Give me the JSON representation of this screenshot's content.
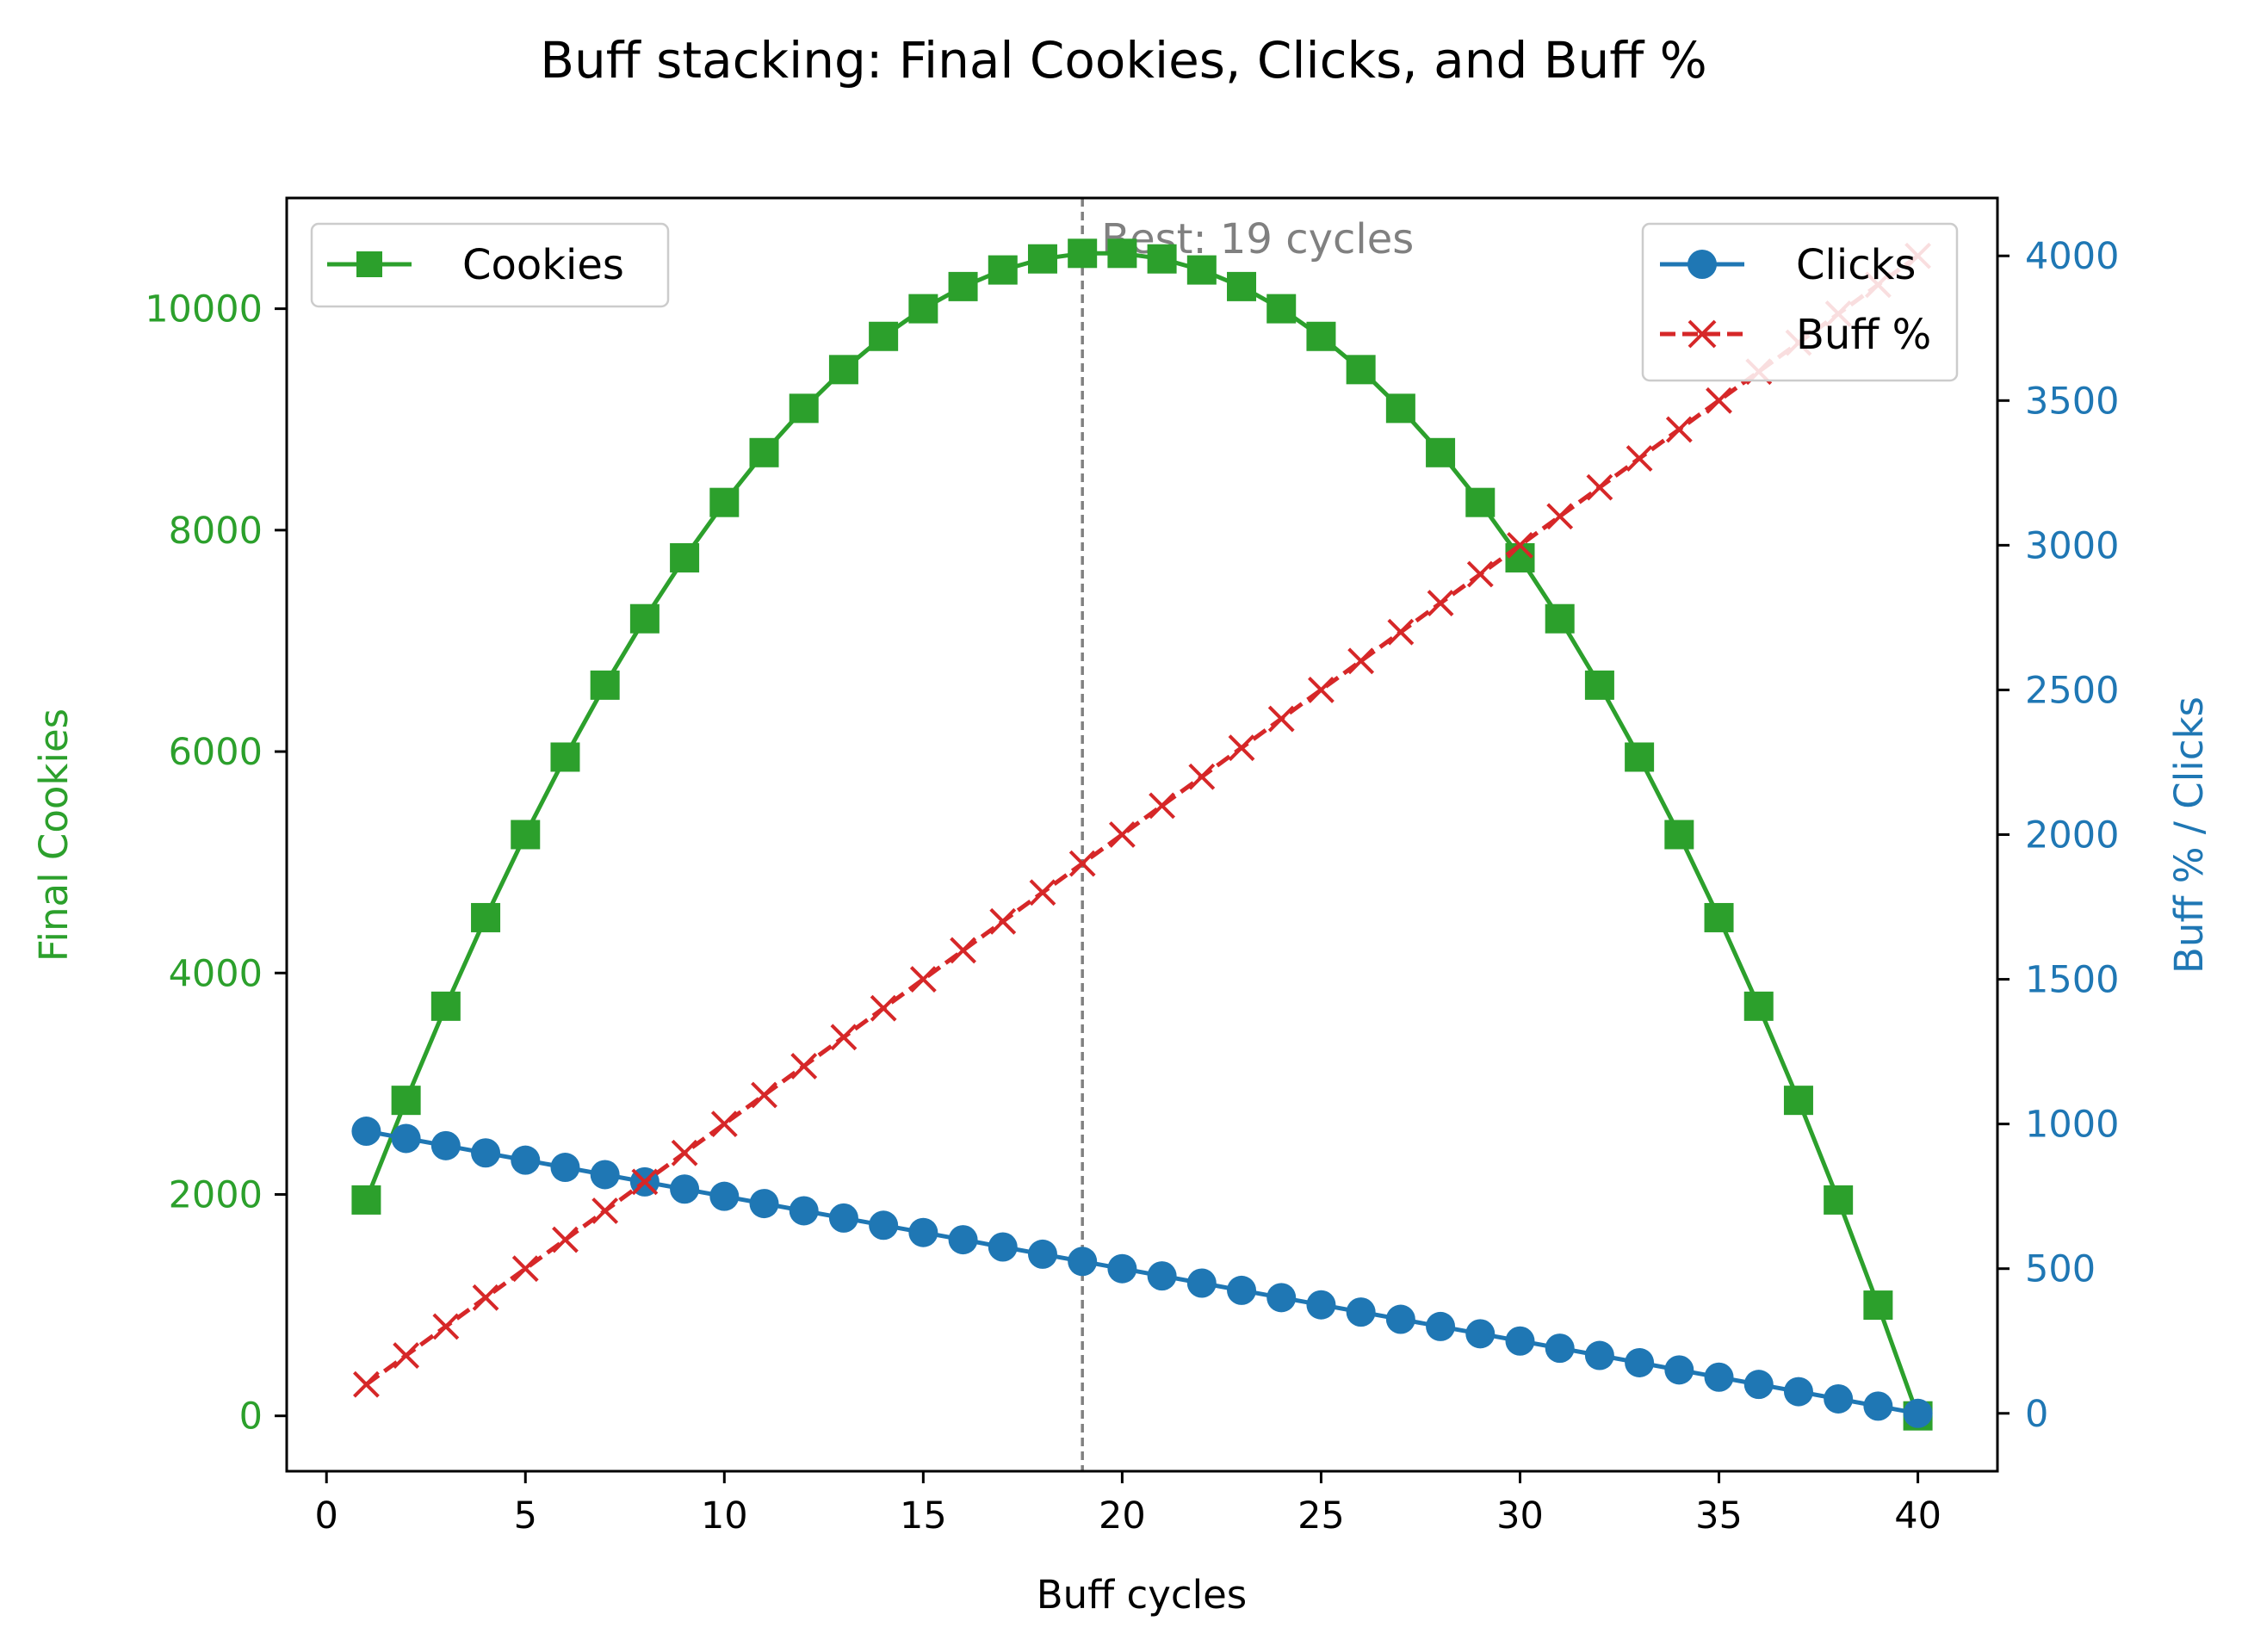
{
  "chart_data": {
    "type": "line",
    "title": "Buff stacking: Final Cookies, Clicks, and Buff %",
    "xlabel": "Buff cycles",
    "ylabel_left": "Final Cookies",
    "ylabel_right": "Buff % / Clicks",
    "xlim": [
      -1,
      42
    ],
    "ylim_left": [
      -500,
      11000
    ],
    "ylim_right": [
      -200,
      4200
    ],
    "xticks": [
      0,
      5,
      10,
      15,
      20,
      25,
      30,
      35,
      40
    ],
    "yticks_left": [
      0,
      2000,
      4000,
      6000,
      8000,
      10000
    ],
    "yticks_right": [
      0,
      500,
      1000,
      1500,
      2000,
      2500,
      3000,
      3500,
      4000
    ],
    "grid": false,
    "x": [
      1,
      2,
      3,
      4,
      5,
      6,
      7,
      8,
      9,
      10,
      11,
      12,
      13,
      14,
      15,
      16,
      17,
      18,
      19,
      20,
      21,
      22,
      23,
      24,
      25,
      26,
      27,
      28,
      29,
      30,
      31,
      32,
      33,
      34,
      35,
      36,
      37,
      38,
      39,
      40
    ],
    "series": [
      {
        "name": "Cookies",
        "axis": "left",
        "color": "#2ca02c",
        "marker": "square",
        "linestyle": "solid",
        "values": [
          1950,
          2850,
          3700,
          4500,
          5250,
          5950,
          6600,
          7200,
          7750,
          8250,
          8700,
          9100,
          9450,
          9750,
          10000,
          10200,
          10350,
          10450,
          10500,
          10500,
          10450,
          10350,
          10200,
          10000,
          9750,
          9450,
          9100,
          8700,
          8250,
          7750,
          7200,
          6600,
          5950,
          5250,
          4500,
          3700,
          2850,
          1950,
          1000,
          0
        ]
      },
      {
        "name": "Clicks",
        "axis": "right",
        "color": "#1f77b4",
        "marker": "circle",
        "linestyle": "solid",
        "values": [
          975,
          950,
          925,
          900,
          875,
          850,
          825,
          800,
          775,
          750,
          725,
          700,
          675,
          650,
          625,
          600,
          575,
          550,
          525,
          500,
          475,
          450,
          425,
          400,
          375,
          350,
          325,
          300,
          275,
          250,
          225,
          200,
          175,
          150,
          125,
          100,
          75,
          50,
          25,
          0
        ]
      },
      {
        "name": "Buff %",
        "axis": "right",
        "color": "#d62728",
        "marker": "x",
        "linestyle": "dashed",
        "values": [
          100,
          200,
          300,
          400,
          500,
          600,
          700,
          800,
          900,
          1000,
          1100,
          1200,
          1300,
          1400,
          1500,
          1600,
          1700,
          1800,
          1900,
          2000,
          2100,
          2200,
          2300,
          2400,
          2500,
          2600,
          2700,
          2800,
          2900,
          3000,
          3100,
          3200,
          3300,
          3400,
          3500,
          3600,
          3700,
          3800,
          3900,
          4000
        ]
      }
    ],
    "annotation": {
      "text": "Best: 19 cycles",
      "x": 19,
      "line_color": "#808080"
    },
    "legends": {
      "left": {
        "placement": "upper-left",
        "items": [
          "Cookies"
        ]
      },
      "right": {
        "placement": "upper-right",
        "items": [
          "Clicks",
          "Buff %"
        ]
      }
    },
    "colors": {
      "left_axis": "#2ca02c",
      "right_axis": "#1f77b4",
      "text": "#000000"
    }
  }
}
